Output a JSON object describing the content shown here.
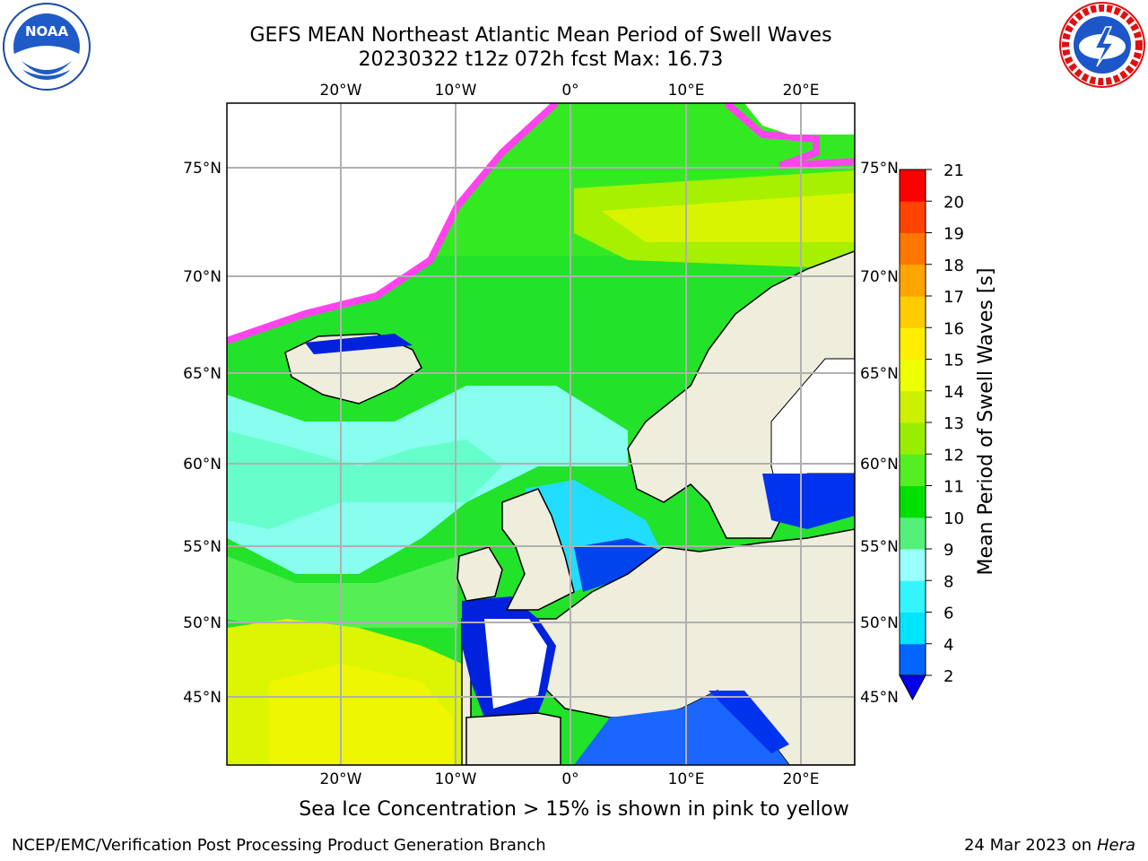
{
  "header": {
    "title_line1": "GEFS MEAN Northeast Atlantic Mean Period of Swell Waves",
    "title_line2": "20230322 t12z 072h fcst   Max: 16.73"
  },
  "map": {
    "lon_ticks": [
      "20°W",
      "10°W",
      "0°",
      "10°E",
      "20°E"
    ],
    "lat_ticks": [
      "75°N",
      "70°N",
      "65°N",
      "60°N",
      "55°N",
      "50°N",
      "45°N"
    ],
    "colors": {
      "land": "#efeddc",
      "ice_pink": "#ff44ee",
      "gridline": "#b0b0b0"
    }
  },
  "colorbar": {
    "label": "Mean Period of Swell Waves [s]",
    "ticks": [
      "2",
      "4",
      "6",
      "8",
      "9",
      "10",
      "11",
      "12",
      "13",
      "14",
      "15",
      "16",
      "17",
      "18",
      "19",
      "20",
      "21"
    ],
    "colors": [
      "#0066ff",
      "#00e5ff",
      "#33f5ff",
      "#99ffff",
      "#55f07a",
      "#00e000",
      "#55ee22",
      "#99ee00",
      "#ccf000",
      "#eeff00",
      "#ffee00",
      "#ffcc00",
      "#ffa500",
      "#ff7700",
      "#ff4400",
      "#ff0000"
    ]
  },
  "note": "Sea Ice Concentration > 15% is shown in pink to yellow",
  "footer": {
    "left": "NCEP/EMC/Verification Post Processing Product Generation Branch",
    "right_date": "24 Mar 2023 on",
    "right_host": "Hera"
  },
  "logos": {
    "noaa": "NOAA",
    "nws": "NATIONAL WEATHER SERVICE"
  }
}
